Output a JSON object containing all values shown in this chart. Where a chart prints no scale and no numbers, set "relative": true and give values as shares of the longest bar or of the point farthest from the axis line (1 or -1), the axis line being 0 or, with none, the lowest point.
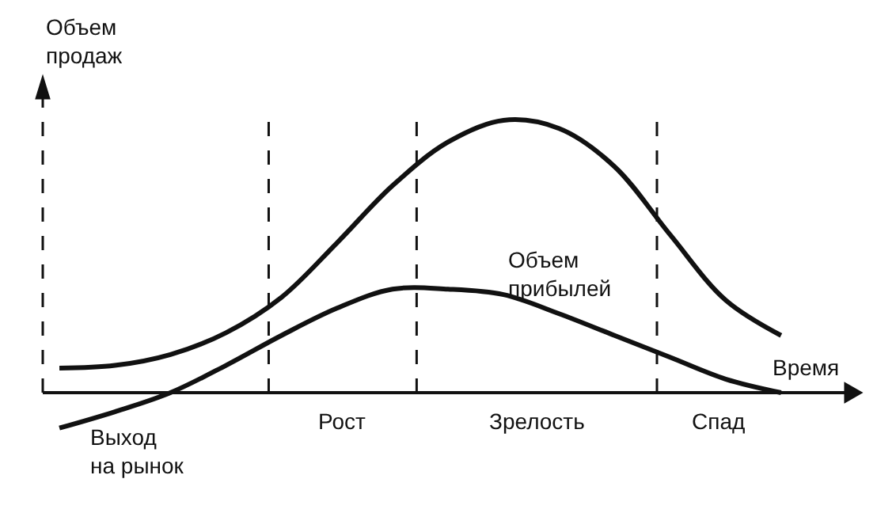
{
  "chart_data": {
    "type": "line",
    "relative": true,
    "ylabel": "Объем продаж",
    "xlabel": "Время",
    "categories": [
      null,
      null,
      null,
      null,
      null,
      null,
      null,
      null,
      null,
      null,
      null,
      null,
      null,
      null
    ],
    "series": [
      {
        "color": "#111111",
        "values": [
          0.09,
          0.1,
          0.14,
          0.22,
          0.35,
          0.55,
          0.76,
          0.92,
          1.0,
          0.97,
          0.83,
          0.58,
          0.34,
          0.21
        ]
      },
      {
        "name": "Объем прибылей",
        "color": "#111111",
        "values": [
          -0.13,
          -0.07,
          0.0,
          0.1,
          0.21,
          0.31,
          0.38,
          0.38,
          0.36,
          0.29,
          0.21,
          0.13,
          0.05,
          0.0
        ]
      }
    ],
    "annotations": [
      "Выход на рынок",
      "Рост",
      "Зрелость",
      "Спад"
    ],
    "legend": false,
    "marker": "none",
    "line_style": "solid"
  }
}
